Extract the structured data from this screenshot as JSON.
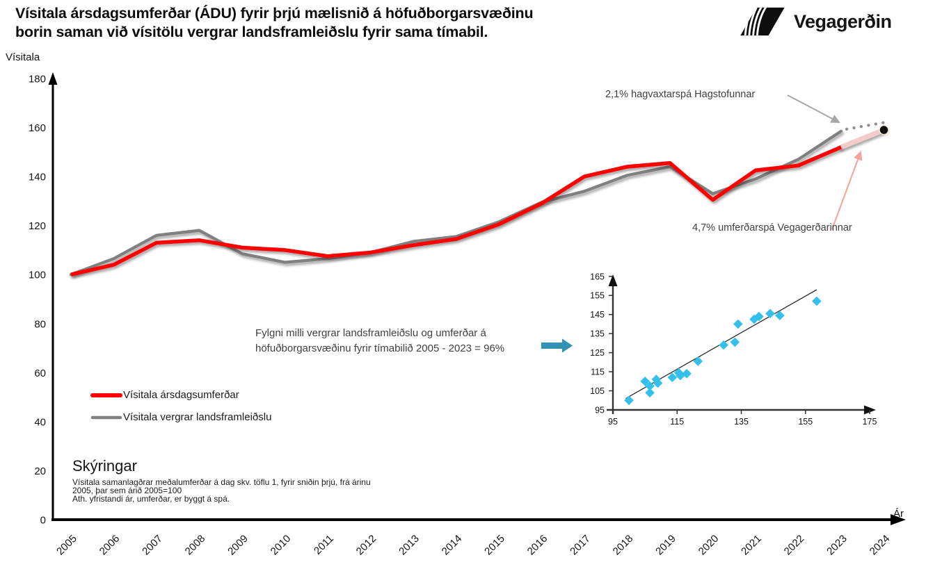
{
  "header": {
    "title_line1": "Vísitala ársdagsumferðar (ÁDU) fyrir þrjú mælisnið á höfuðborgarsvæðinu",
    "title_line2": "borin saman við vísitölu vergrar landsframleiðslu fyrir sama tímabil.",
    "logo_text": "Vegagerðin"
  },
  "colors": {
    "traffic_line": "#ff0000",
    "gdp_line": "#808080",
    "traffic_forecast": "#f5cbc8",
    "gdp_forecast_dots": "#8f8f8f",
    "pointer_arrow": "#2e93b5",
    "scatter_marker": "#33c1ec",
    "annotation_arrow_gray": "#a6a6a6",
    "annotation_arrow_pink": "#f2a39c"
  },
  "chart_data": [
    {
      "id": "main-line-chart",
      "type": "line",
      "ylabel": "Vísitala",
      "xlabel": "Ár",
      "ylim": [
        0,
        180
      ],
      "y_ticks": [
        0,
        20,
        40,
        60,
        80,
        100,
        120,
        140,
        160,
        180
      ],
      "categories": [
        "2005",
        "2006",
        "2007",
        "2008",
        "2009",
        "2010",
        "2011",
        "2012",
        "2013",
        "2014",
        "2015",
        "2016",
        "2017",
        "2018",
        "2019",
        "2020",
        "2021",
        "2022",
        "2023",
        "2024"
      ],
      "grid": false,
      "legend_position": "inside-bottom-left",
      "series": [
        {
          "name": "Vísitala ársdagsumferðar",
          "color": "#ff0000",
          "values": [
            100,
            104,
            113,
            114,
            111,
            110,
            107.5,
            109,
            112,
            114.5,
            120.5,
            129,
            140,
            144,
            145.5,
            130.5,
            142.5,
            144.5,
            152
          ],
          "forecast": {
            "year": "2024",
            "value": 159,
            "style": "solid",
            "color": "#f5cbc8",
            "label": "4,7% umferðarspá Vegagerðarinnar"
          }
        },
        {
          "name": "Vísitala vergrar landsframleiðslu",
          "color": "#808080",
          "values": [
            100,
            106.5,
            116,
            118,
            108.5,
            105,
            106.5,
            109,
            113.5,
            115.5,
            121.5,
            129.5,
            134,
            140.5,
            144,
            133,
            139,
            147,
            158.5
          ],
          "forecast": {
            "year": "2024",
            "value": 162,
            "style": "dotted",
            "color": "#8f8f8f",
            "label": "2,1% hagvaxtarspá Hagstofunnar"
          }
        }
      ]
    },
    {
      "id": "inset-scatter",
      "type": "scatter",
      "xlim": [
        95,
        175
      ],
      "ylim": [
        95,
        165
      ],
      "x_ticks": [
        95,
        115,
        135,
        155,
        175
      ],
      "y_ticks": [
        95,
        105,
        115,
        125,
        135,
        145,
        155,
        165
      ],
      "marker_color": "#33c1ec",
      "points": [
        [
          100,
          100
        ],
        [
          106.5,
          104
        ],
        [
          116,
          113
        ],
        [
          118,
          114
        ],
        [
          108.5,
          111
        ],
        [
          105,
          110
        ],
        [
          106.5,
          107.5
        ],
        [
          109,
          109
        ],
        [
          113.5,
          112
        ],
        [
          115.5,
          114.5
        ],
        [
          121.5,
          120.5
        ],
        [
          129.5,
          129
        ],
        [
          134,
          140
        ],
        [
          140.5,
          144
        ],
        [
          144,
          145.5
        ],
        [
          133,
          130.5
        ],
        [
          139,
          142.5
        ],
        [
          147,
          144.5
        ],
        [
          158.5,
          152
        ]
      ],
      "trend_line": {
        "x1": 99,
        "y1": 101,
        "x2": 158.5,
        "y2": 158
      }
    }
  ],
  "correlation_note": {
    "line1": "Fylgni milli vergrar landsframleiðslu og umferðar á",
    "line2": "höfuðborgarsvæðinu fyrir tímabilið 2005 - 2023 = 96%"
  },
  "notes": {
    "heading": "Skýringar",
    "lines": [
      "Vísitala samanlagðrar meðalumferðar á dag  skv. töflu 1, fyrir sniðin  þrjú, frá árinu",
      "2005, þar sem árið 2005=100",
      "Ath. yfristandi ár, umferðar, er byggt á spá."
    ]
  }
}
